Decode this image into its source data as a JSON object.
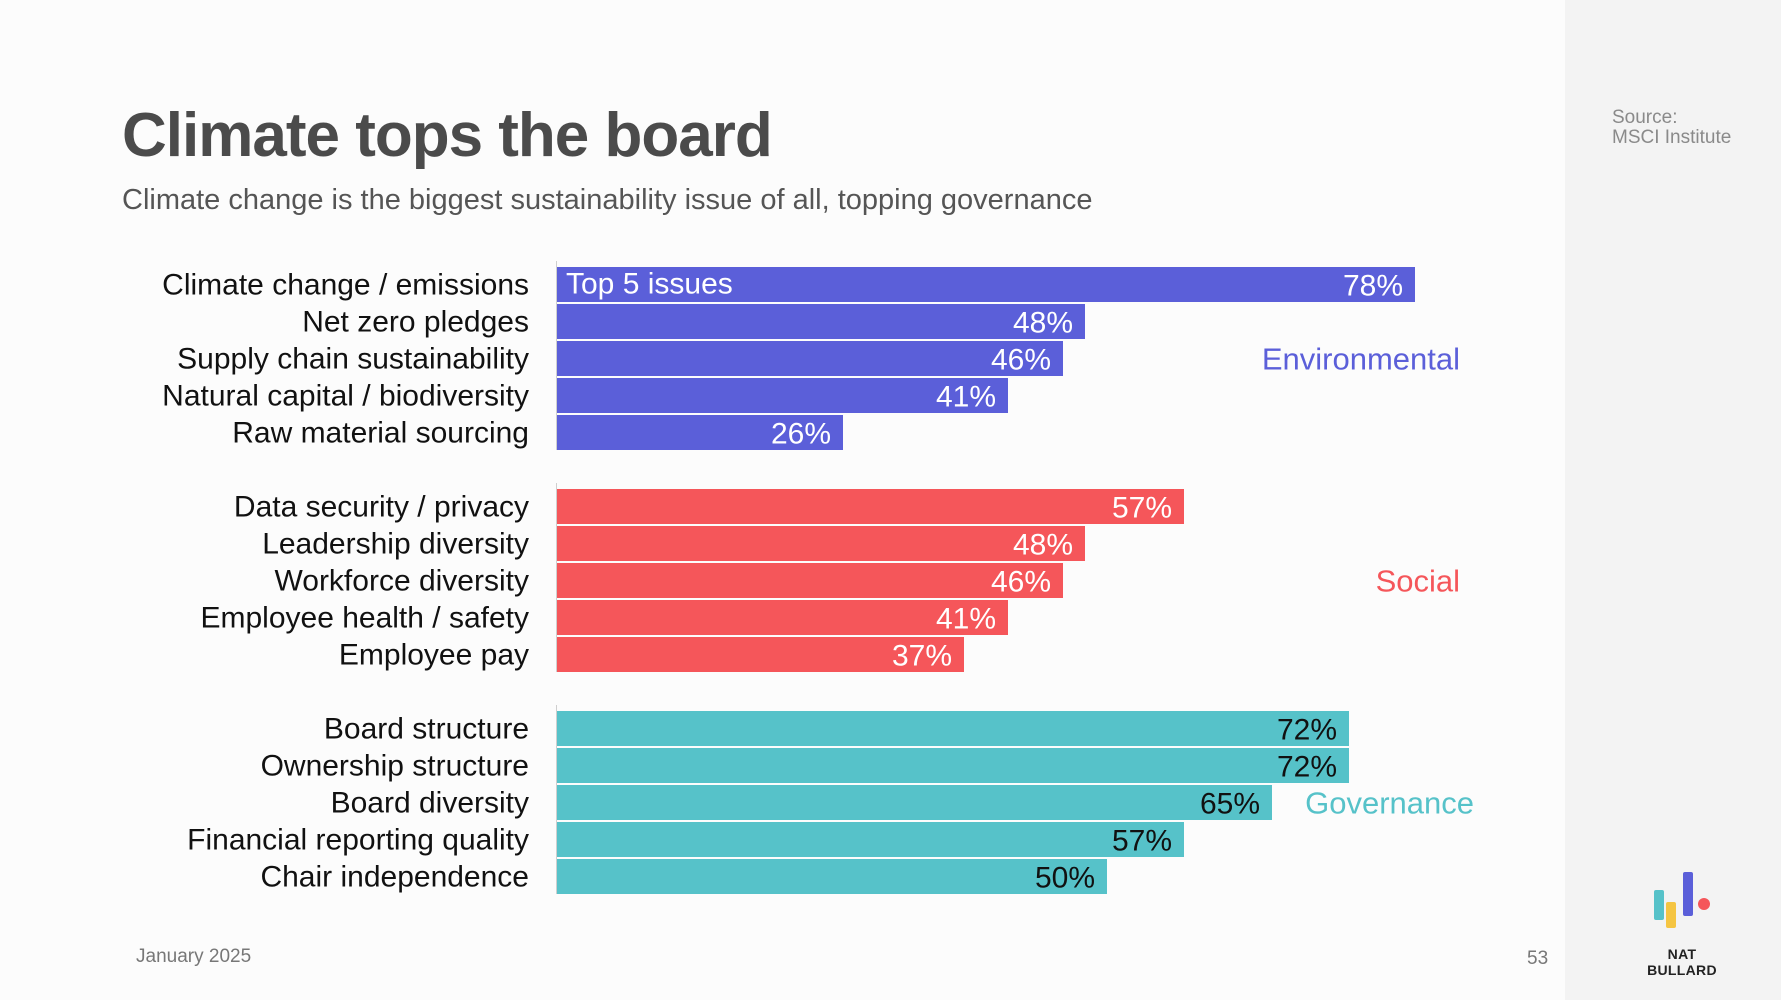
{
  "header": {
    "title": "Climate tops the board",
    "subtitle": "Climate change is the biggest sustainability issue of all, topping governance"
  },
  "source": {
    "line1": "Source:",
    "line2": "MSCI Institute"
  },
  "footer": {
    "date": "January 2025",
    "page": "53",
    "brand": "NAT BULLARD"
  },
  "chart_data": {
    "type": "bar",
    "orientation": "horizontal",
    "annotation": "Top 5 issues",
    "value_suffix": "%",
    "xlim": [
      0,
      100
    ],
    "groups": [
      {
        "name": "Environmental",
        "color": "#5b5fd9",
        "label_color": "#ffffff",
        "categories": [
          "Climate change / emissions",
          "Net zero pledges",
          "Supply chain sustainability",
          "Natural capital / biodiversity",
          "Raw material sourcing"
        ],
        "values": [
          78,
          48,
          46,
          41,
          26
        ]
      },
      {
        "name": "Social",
        "color": "#f5565a",
        "label_color": "#ffffff",
        "categories": [
          "Data security / privacy",
          "Leadership diversity",
          "Workforce diversity",
          "Employee health / safety",
          "Employee pay"
        ],
        "values": [
          57,
          48,
          46,
          41,
          37
        ]
      },
      {
        "name": "Governance",
        "color": "#56c2c9",
        "label_color": "#111111",
        "categories": [
          "Board structure",
          "Ownership structure",
          "Board diversity",
          "Financial reporting quality",
          "Chair independence"
        ],
        "values": [
          72,
          72,
          65,
          57,
          50
        ]
      }
    ]
  },
  "logo": {
    "icon": "bar-chart-logo-icon",
    "colors": [
      "#56c2c9",
      "#f5c542",
      "#5b5fd9",
      "#f5565a"
    ]
  }
}
